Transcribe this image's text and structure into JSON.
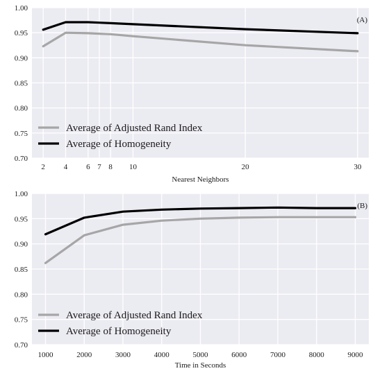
{
  "chart_data": [
    {
      "type": "line",
      "annotation": "(A)",
      "xlabel": "Nearest Neighbors",
      "ylabel": "",
      "xlim": [
        1,
        31
      ],
      "ylim": [
        0.7,
        1.0
      ],
      "x_ticks": [
        2,
        4,
        6,
        7,
        8,
        10,
        20,
        30
      ],
      "y_ticks": [
        "0.70",
        "0.75",
        "0.80",
        "0.85",
        "0.90",
        "0.95",
        "1.00"
      ],
      "grid": true,
      "legend_position": "lower-left",
      "x": [
        2,
        4,
        6,
        7,
        8,
        10,
        20,
        30
      ],
      "series": [
        {
          "name": "Average of Adjusted Rand Index",
          "color": "#a6a6a6",
          "values": [
            0.923,
            0.95,
            0.949,
            0.948,
            0.947,
            0.943,
            0.925,
            0.913
          ]
        },
        {
          "name": "Average of Homogeneity",
          "color": "#000000",
          "values": [
            0.956,
            0.971,
            0.971,
            0.97,
            0.969,
            0.967,
            0.957,
            0.949
          ]
        }
      ]
    },
    {
      "type": "line",
      "annotation": "(B)",
      "xlabel": "Time in Seconds",
      "ylabel": "",
      "xlim": [
        650,
        9350
      ],
      "ylim": [
        0.7,
        1.0
      ],
      "x_ticks": [
        1000,
        2000,
        3000,
        4000,
        5000,
        6000,
        7000,
        8000,
        9000
      ],
      "y_ticks": [
        "0.70",
        "0.75",
        "0.80",
        "0.85",
        "0.90",
        "0.95",
        "1.00"
      ],
      "grid": true,
      "legend_position": "lower-left",
      "x": [
        1000,
        2000,
        3000,
        4000,
        5000,
        6000,
        7000,
        8000,
        9000
      ],
      "series": [
        {
          "name": "Average of Adjusted Rand Index",
          "color": "#a6a6a6",
          "values": [
            0.862,
            0.917,
            0.938,
            0.946,
            0.95,
            0.952,
            0.953,
            0.953,
            0.953
          ]
        },
        {
          "name": "Average of Homogeneity",
          "color": "#000000",
          "values": [
            0.919,
            0.952,
            0.964,
            0.968,
            0.97,
            0.971,
            0.972,
            0.971,
            0.971
          ]
        }
      ]
    }
  ]
}
